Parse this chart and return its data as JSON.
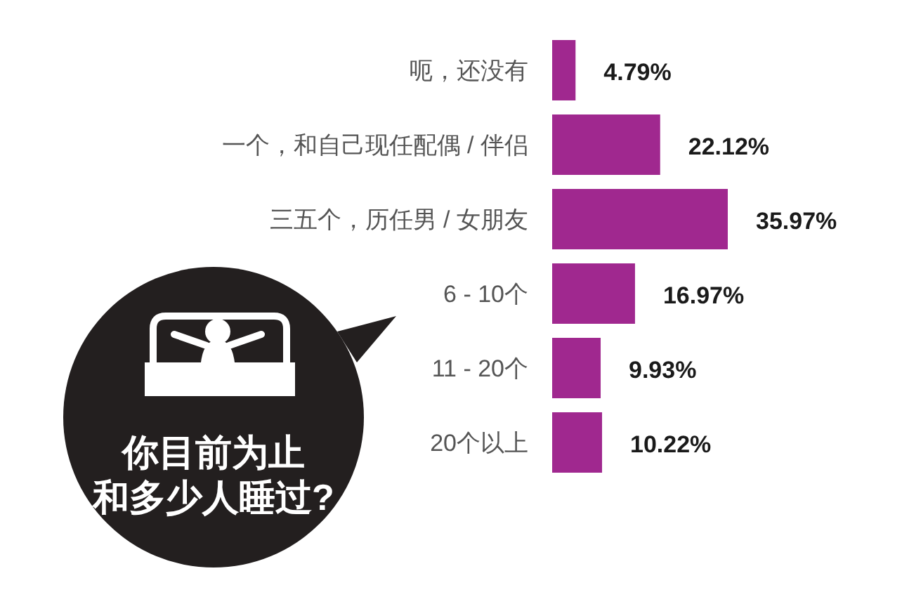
{
  "chart_data": {
    "type": "bar",
    "orientation": "horizontal",
    "title": "你目前为止和多少人睡过?",
    "categories": [
      "呃，还没有",
      "一个，和自己现任配偶 / 伴侣",
      "三五个，历任男 / 女朋友",
      "6 - 10个",
      "11 - 20个",
      "20个以上"
    ],
    "values": [
      4.79,
      22.12,
      35.97,
      16.97,
      9.93,
      10.22
    ],
    "color": "#a0288f",
    "value_labels": [
      "4.79%",
      "22.12%",
      "35.97%",
      "16.97%",
      "9.93%",
      "10.22%"
    ]
  }
}
